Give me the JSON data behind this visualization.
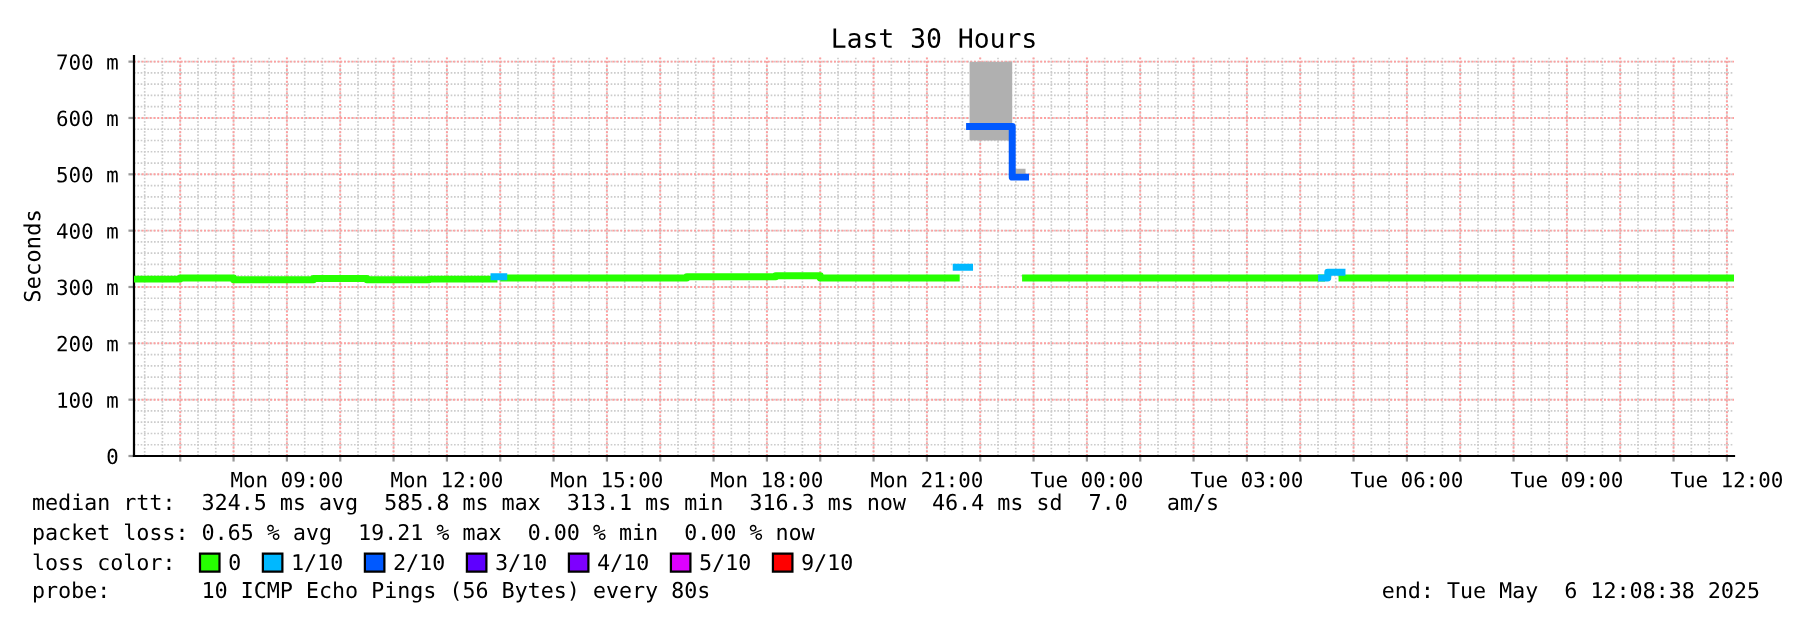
{
  "chart_data": {
    "type": "line",
    "title": "Last 30 Hours",
    "ylabel": "Seconds",
    "series": [
      {
        "name": "0",
        "color": "#26ff00",
        "x": [
          "2025-05-05T06:08",
          "2025-05-05T07:00",
          "2025-05-05T07:00",
          "2025-05-05T08:00",
          "2025-05-05T08:00",
          "2025-05-05T09:30",
          "2025-05-05T09:30",
          "2025-05-05T10:30",
          "2025-05-05T10:30",
          "2025-05-05T11:40",
          "2025-05-05T11:40",
          "2025-05-05T12:53",
          "2025-05-05T12:58",
          "2025-05-05T13:04",
          "2025-05-05T16:30",
          "2025-05-05T16:30",
          "2025-05-05T18:10",
          "2025-05-05T18:10",
          "2025-05-05T19:00",
          "2025-05-05T19:00",
          "2025-05-05T21:33",
          "2025-05-05T22:00",
          "2025-05-05T22:51",
          "2025-05-06T04:24",
          "2025-05-06T04:30",
          "2025-05-06T04:47",
          "2025-05-06T12:08"
        ],
        "values": [
          314,
          314,
          316,
          316,
          313,
          313,
          315,
          315,
          313,
          313,
          314,
          314,
          null,
          316,
          316,
          318,
          318,
          320,
          320,
          316,
          316,
          null,
          316,
          316,
          null,
          316,
          316
        ]
      },
      {
        "name": "1/10",
        "color": "#00b8ff",
        "x": [
          "2025-05-05T12:53",
          "2025-05-05T13:04",
          "2025-05-05T18:00",
          "2025-05-05T21:33",
          "2025-05-05T21:48",
          "2025-05-06T00:00",
          "2025-05-06T04:24",
          "2025-05-06T04:31",
          "2025-05-06T04:31",
          "2025-05-06T04:47"
        ],
        "values": [
          318,
          318,
          null,
          335,
          335,
          null,
          316,
          316,
          326,
          326
        ]
      },
      {
        "name": "2/10",
        "color": "#0059ff",
        "x": [
          "2025-05-05T21:48",
          "2025-05-05T22:36",
          "2025-05-05T22:36",
          "2025-05-05T22:51"
        ],
        "values": [
          585,
          585,
          495,
          495
        ],
        "lower": [
          560,
          560,
          490,
          490
        ],
        "upper": [
          700,
          700,
          510,
          510
        ]
      },
      {
        "name": "3/10",
        "color": "#5e00ff"
      },
      {
        "name": "4/10",
        "color": "#7e00ff"
      },
      {
        "name": "5/10",
        "color": "#dd00ff"
      },
      {
        "name": "9/10",
        "color": "#ff0000"
      }
    ],
    "xlim": [
      "2025-05-05T06:08",
      "2025-05-06T12:08"
    ],
    "xticks": [
      {
        "value": "2025-05-05T07:00",
        "label": null
      },
      {
        "value": "2025-05-05T08:00",
        "label": null
      },
      {
        "value": "2025-05-05T09:00",
        "label": "Mon 09:00"
      },
      {
        "value": "2025-05-05T10:00",
        "label": null
      },
      {
        "value": "2025-05-05T11:00",
        "label": null
      },
      {
        "value": "2025-05-05T12:00",
        "label": "Mon 12:00"
      },
      {
        "value": "2025-05-05T13:00",
        "label": null
      },
      {
        "value": "2025-05-05T14:00",
        "label": null
      },
      {
        "value": "2025-05-05T15:00",
        "label": "Mon 15:00"
      },
      {
        "value": "2025-05-05T16:00",
        "label": null
      },
      {
        "value": "2025-05-05T17:00",
        "label": null
      },
      {
        "value": "2025-05-05T18:00",
        "label": "Mon 18:00"
      },
      {
        "value": "2025-05-05T19:00",
        "label": null
      },
      {
        "value": "2025-05-05T20:00",
        "label": null
      },
      {
        "value": "2025-05-05T21:00",
        "label": "Mon 21:00"
      },
      {
        "value": "2025-05-05T22:00",
        "label": null
      },
      {
        "value": "2025-05-05T23:00",
        "label": null
      },
      {
        "value": "2025-05-06T00:00",
        "label": "Tue 00:00"
      },
      {
        "value": "2025-05-06T01:00",
        "label": null
      },
      {
        "value": "2025-05-06T02:00",
        "label": null
      },
      {
        "value": "2025-05-06T03:00",
        "label": "Tue 03:00"
      },
      {
        "value": "2025-05-06T04:00",
        "label": null
      },
      {
        "value": "2025-05-06T05:00",
        "label": null
      },
      {
        "value": "2025-05-06T06:00",
        "label": "Tue 06:00"
      },
      {
        "value": "2025-05-06T07:00",
        "label": null
      },
      {
        "value": "2025-05-06T08:00",
        "label": null
      },
      {
        "value": "2025-05-06T09:00",
        "label": "Tue 09:00"
      },
      {
        "value": "2025-05-06T10:00",
        "label": null
      },
      {
        "value": "2025-05-06T11:00",
        "label": null
      },
      {
        "value": "2025-05-06T12:00",
        "label": "Tue 12:00"
      }
    ],
    "ylim": [
      0,
      710
    ],
    "yticks": [
      0,
      {
        "value": 100,
        "label": "100 m"
      },
      {
        "value": 200,
        "label": "200 m"
      },
      {
        "value": 300,
        "label": "300 m"
      },
      {
        "value": 400,
        "label": "400 m"
      },
      {
        "value": 500,
        "label": "500 m"
      },
      {
        "value": 600,
        "label": "600 m"
      },
      {
        "value": 700,
        "label": "700 m"
      }
    ],
    "grid": true,
    "legend": "bottom",
    "annotations": [
      "median rtt:  324.5 ms avg  585.8 ms max  313.1 ms min  316.3 ms now  46.4 ms sd  7.0   am/s",
      "packet loss: 0.65 % avg  19.21 % max  0.00 % min  0.00 % now",
      "loss color:",
      "probe:       10 ICMP Echo Pings (56 Bytes) every 80s",
      "end: Tue May  6 12:08:38 2025"
    ]
  }
}
